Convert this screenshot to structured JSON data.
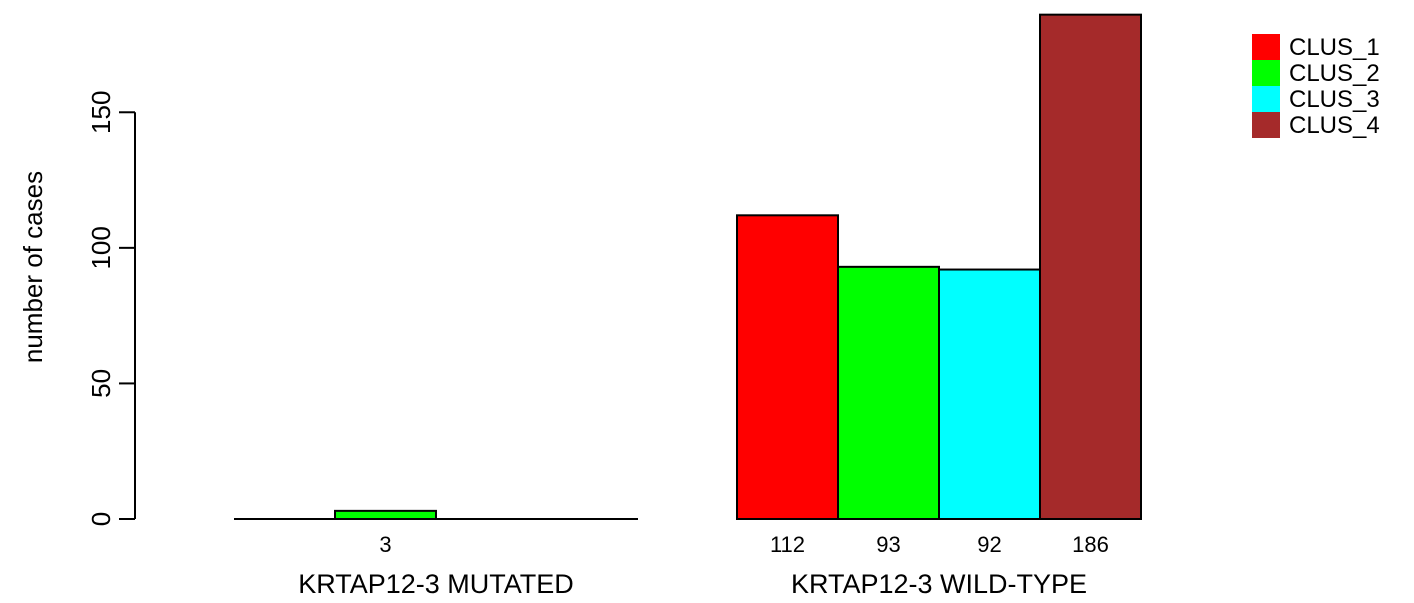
{
  "chart_data": {
    "type": "bar",
    "title": "",
    "xlabel": "",
    "ylabel": "number of cases",
    "ylim": [
      0,
      186
    ],
    "yticks": [
      0,
      50,
      100,
      150
    ],
    "legend_position": "top-right",
    "grid": false,
    "series": [
      {
        "name": "CLUS_1",
        "color": "#ff0000"
      },
      {
        "name": "CLUS_2",
        "color": "#00ff00"
      },
      {
        "name": "CLUS_3",
        "color": "#00ffff"
      },
      {
        "name": "CLUS_4",
        "color": "#a52a2a"
      }
    ],
    "groups": [
      {
        "label": "KRTAP12-3 MUTATED",
        "values": [
          0,
          3,
          0,
          0
        ],
        "value_labels": [
          "",
          "3",
          "",
          ""
        ]
      },
      {
        "label": "KRTAP12-3 WILD-TYPE",
        "values": [
          112,
          93,
          92,
          186
        ],
        "value_labels": [
          "112",
          "93",
          "92",
          "186"
        ]
      }
    ]
  }
}
